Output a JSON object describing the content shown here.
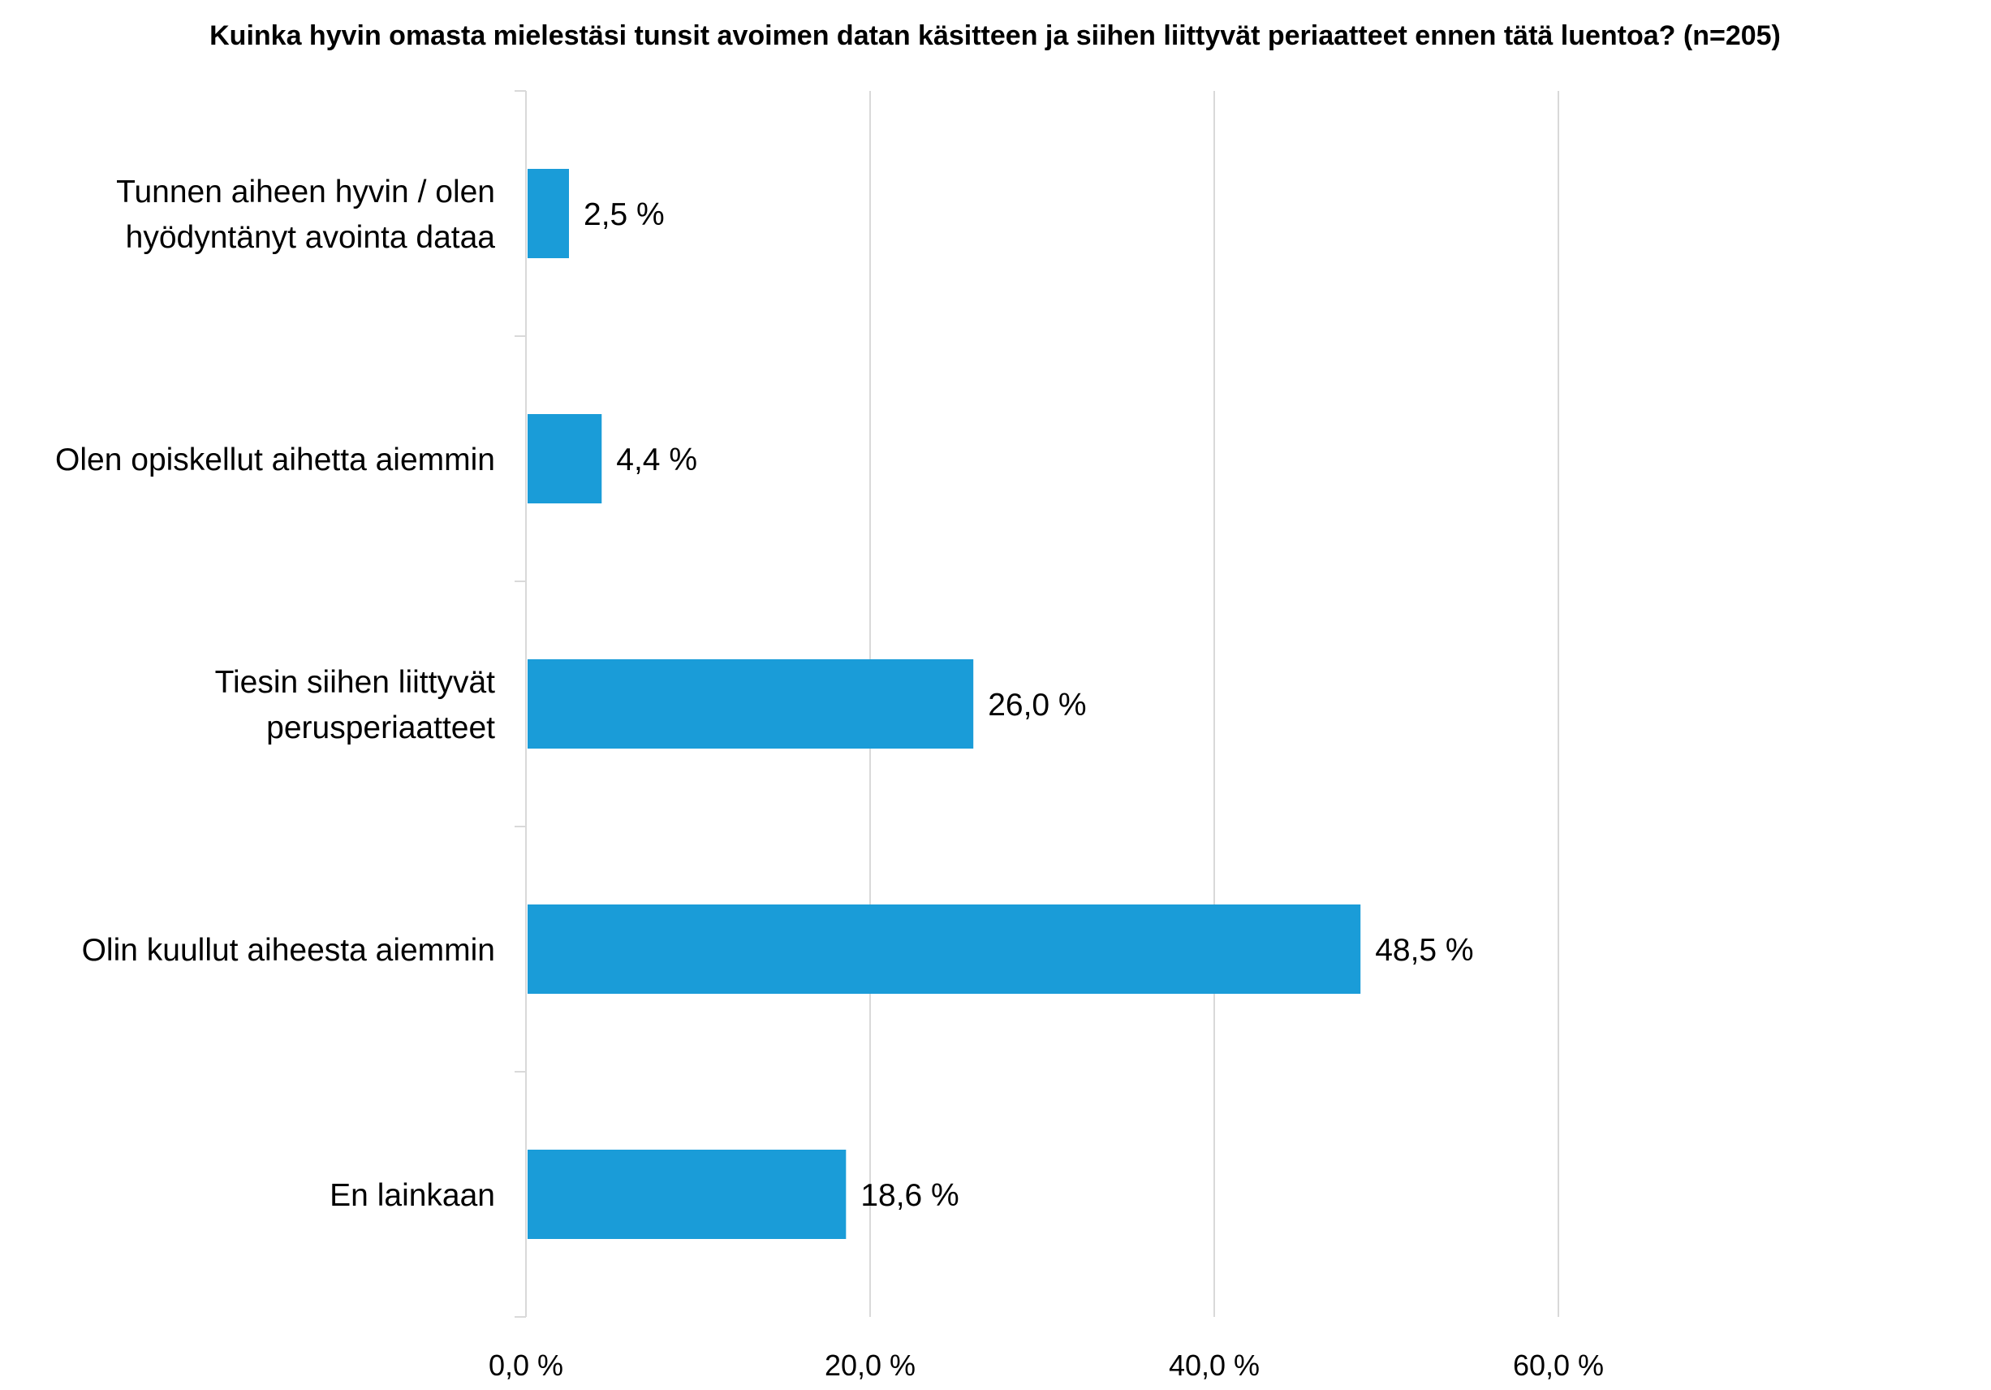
{
  "chart_data": {
    "type": "bar",
    "orientation": "horizontal",
    "title": "Kuinka hyvin omasta mielestäsi tunsit avoimen datan käsitteen ja siihen liittyvät periaatteet ennen tätä luentoa? (n=205)",
    "categories": [
      [
        "Tunnen aiheen hyvin / olen",
        "hyödyntänyt avointa dataa"
      ],
      [
        "Olen opiskellut aihetta aiemmin"
      ],
      [
        "Tiesin siihen liittyvät",
        "perusperiaatteet"
      ],
      [
        "Olin kuullut aiheesta aiemmin"
      ],
      [
        "En lainkaan"
      ]
    ],
    "values": [
      2.5,
      4.4,
      26.0,
      48.5,
      18.6
    ],
    "value_labels": [
      "2,5 %",
      "4,4 %",
      "26,0 %",
      "48,5 %",
      "18,6 %"
    ],
    "x_ticks": [
      0,
      20,
      40,
      60
    ],
    "x_tick_labels": [
      "0,0 %",
      "20,0 %",
      "40,0 %",
      "60,0 %"
    ],
    "xlim": [
      0,
      60
    ],
    "grid": true,
    "legend": "none",
    "bar_color": "#1a9cd8",
    "grid_color": "#d9d9d9"
  }
}
